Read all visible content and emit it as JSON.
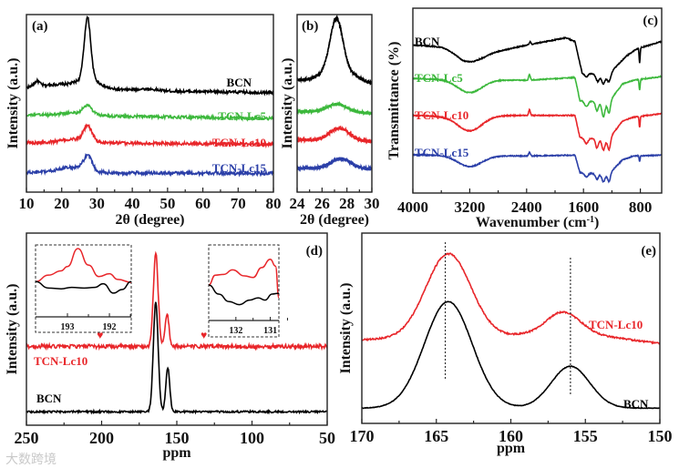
{
  "watermark": "大数跨境",
  "chart_data": [
    {
      "id": "a",
      "type": "line",
      "panel_label": "(a)",
      "xlabel": "2θ (degree)",
      "ylabel": "Intensity (a.u.)",
      "xlim": [
        10,
        80
      ],
      "ylim": [
        0,
        100
      ],
      "xticks": [
        10,
        20,
        30,
        40,
        50,
        60,
        70,
        80
      ],
      "minor_step": 5,
      "series": [
        {
          "name": "BCN",
          "color": "#000000",
          "noise": 0.8,
          "baseline": [
            [
              10,
              59
            ],
            [
              12,
              59
            ],
            [
              30,
              58
            ],
            [
              45,
              57
            ],
            [
              80,
              56
            ]
          ],
          "peaks": [
            [
              13,
              3,
              0.8
            ],
            [
              19,
              2,
              4
            ],
            [
              27.3,
              34,
              0.9
            ],
            [
              27.5,
              6,
              3
            ],
            [
              44,
              1,
              3
            ]
          ]
        },
        {
          "name": "TCN-Lc5",
          "color": "#3cb83c",
          "noise": 0.8,
          "baseline": [
            [
              10,
              43.5
            ],
            [
              80,
              41.5
            ]
          ],
          "peaks": [
            [
              27.3,
              5,
              1.2
            ],
            [
              24,
              1.5,
              4
            ]
          ]
        },
        {
          "name": "TCN-Lc10",
          "color": "#e8262a",
          "noise": 0.9,
          "baseline": [
            [
              10,
              28
            ],
            [
              80,
              27
            ]
          ],
          "peaks": [
            [
              27.4,
              8,
              1.2
            ],
            [
              24,
              2,
              4
            ]
          ]
        },
        {
          "name": "TCN-Lc15",
          "color": "#2b3fa8",
          "noise": 0.9,
          "baseline": [
            [
              10,
              11
            ],
            [
              80,
              10.5
            ]
          ],
          "peaks": [
            [
              27.4,
              8,
              1.2
            ],
            [
              23,
              3,
              4
            ]
          ]
        }
      ]
    },
    {
      "id": "b",
      "type": "line",
      "panel_label": "(b)",
      "xlabel": "2θ (degree)",
      "ylabel": "Intensity (a.u.)",
      "xlim": [
        24,
        30
      ],
      "ylim": [
        0,
        100
      ],
      "xticks": [
        24,
        26,
        28,
        30
      ],
      "minor_step": 1,
      "series": [
        {
          "name": "BCN",
          "color": "#000000",
          "noise": 0.9,
          "baseline": [
            [
              24,
              63
            ],
            [
              30,
              61
            ]
          ],
          "peaks": [
            [
              27.15,
              28,
              0.5
            ],
            [
              27.3,
              8,
              1.2
            ]
          ]
        },
        {
          "name": "TCN-Lc5",
          "color": "#3cb83c",
          "noise": 0.9,
          "baseline": [
            [
              24,
              45.5
            ],
            [
              30,
              44.5
            ]
          ],
          "peaks": [
            [
              27.2,
              4.5,
              0.8
            ]
          ]
        },
        {
          "name": "TCN-Lc10",
          "color": "#e8262a",
          "noise": 1.0,
          "baseline": [
            [
              24,
              29.5
            ],
            [
              30,
              28.5
            ]
          ],
          "peaks": [
            [
              27.4,
              7,
              0.8
            ]
          ]
        },
        {
          "name": "TCN-Lc15",
          "color": "#2b3fa8",
          "noise": 1.0,
          "baseline": [
            [
              24,
              13.5
            ],
            [
              30,
              13
            ]
          ],
          "peaks": [
            [
              27.5,
              5.5,
              0.8
            ]
          ]
        }
      ]
    },
    {
      "id": "c",
      "type": "line",
      "panel_label": "(c)",
      "xlabel": "Wavenumber (cm",
      "xlabel_sup": "-1",
      "xlabel_end": ")",
      "ylabel": "Transmittance (%)",
      "xlim": [
        4000,
        500
      ],
      "ylim": [
        0,
        100
      ],
      "xticks": [
        4000,
        3200,
        2400,
        1600,
        800
      ],
      "minor_step": 400,
      "series": [
        {
          "name": "BCN",
          "color": "#000000",
          "noise": 0.25,
          "baseline": [
            [
              4000,
              80
            ],
            [
              3600,
              79
            ],
            [
              3300,
              75
            ],
            [
              3000,
              75
            ],
            [
              2400,
              80
            ],
            [
              1850,
              84
            ],
            [
              1720,
              82
            ],
            [
              1620,
              65
            ],
            [
              1250,
              64
            ],
            [
              1000,
              74
            ],
            [
              850,
              78
            ],
            [
              500,
              82
            ]
          ],
          "peaks": [
            [
              3200,
              -4,
              150
            ],
            [
              2350,
              1.5,
              10
            ],
            [
              1560,
              -2,
              25
            ],
            [
              1400,
              -4,
              25
            ],
            [
              1320,
              -5,
              25
            ],
            [
              1240,
              -4,
              25
            ],
            [
              810,
              -8,
              7
            ]
          ]
        },
        {
          "name": "TCN-Lc5",
          "color": "#3cb83c",
          "noise": 0.25,
          "baseline": [
            [
              4000,
              62
            ],
            [
              3600,
              61.5
            ],
            [
              2400,
              61
            ],
            [
              1720,
              62.5
            ],
            [
              1650,
              50
            ],
            [
              1250,
              49
            ],
            [
              1050,
              59
            ],
            [
              900,
              61
            ],
            [
              500,
              63
            ]
          ],
          "peaks": [
            [
              3200,
              -7,
              170
            ],
            [
              2360,
              3,
              12
            ],
            [
              1560,
              -3,
              25
            ],
            [
              1410,
              -5,
              20
            ],
            [
              1320,
              -8,
              22
            ],
            [
              1240,
              -6,
              20
            ],
            [
              810,
              -6,
              7
            ]
          ]
        },
        {
          "name": "TCN-Lc10",
          "color": "#e8262a",
          "noise": 0.25,
          "baseline": [
            [
              4000,
              42
            ],
            [
              3600,
              41.5
            ],
            [
              2400,
              42
            ],
            [
              1720,
              42
            ],
            [
              1650,
              30
            ],
            [
              1250,
              29
            ],
            [
              1050,
              39
            ],
            [
              900,
              41
            ],
            [
              500,
              43
            ]
          ],
          "peaks": [
            [
              3200,
              -8,
              170
            ],
            [
              2360,
              3,
              12
            ],
            [
              1560,
              -3,
              25
            ],
            [
              1410,
              -5,
              20
            ],
            [
              1320,
              -6,
              22
            ],
            [
              1240,
              -6,
              20
            ],
            [
              810,
              -6,
              7
            ]
          ]
        },
        {
          "name": "TCN-Lc15",
          "color": "#2b3fa8",
          "noise": 0.25,
          "baseline": [
            [
              4000,
              20.7
            ],
            [
              3600,
              20.5
            ],
            [
              2400,
              20
            ],
            [
              1720,
              20.5
            ],
            [
              1650,
              11
            ],
            [
              1250,
              10
            ],
            [
              1050,
              18
            ],
            [
              900,
              20
            ],
            [
              500,
              20.5
            ]
          ],
          "peaks": [
            [
              3200,
              -6,
              170
            ],
            [
              2360,
              2,
              12
            ],
            [
              1560,
              -2,
              25
            ],
            [
              1410,
              -3,
              20
            ],
            [
              1320,
              -4,
              22
            ],
            [
              1240,
              -4,
              20
            ],
            [
              810,
              -3,
              7
            ]
          ]
        }
      ]
    },
    {
      "id": "d",
      "type": "line",
      "panel_label": "(d)",
      "xlabel": "ppm",
      "ylabel": "Intensity (a.u.)",
      "xlim": [
        250,
        50
      ],
      "ylim": [
        0,
        100
      ],
      "xticks": [
        250,
        200,
        150,
        100,
        50
      ],
      "minor_step": 25,
      "series": [
        {
          "name": "TCN-Lc10",
          "color": "#e8262a",
          "noise": 1.0,
          "baseline": [
            [
              250,
              41
            ],
            [
              50,
              41
            ]
          ],
          "peaks": [
            [
              164,
              48,
              1.6
            ],
            [
              156.5,
              17,
              1.3
            ]
          ]
        },
        {
          "name": "BCN",
          "color": "#000000",
          "noise": 0.5,
          "baseline": [
            [
              250,
              7
            ],
            [
              50,
              7
            ]
          ],
          "peaks": [
            [
              164,
              57,
              1.6
            ],
            [
              156,
              23,
              1.3
            ]
          ]
        }
      ],
      "markers": [
        {
          "symbol": "♥",
          "x": 201,
          "y": 47,
          "color": "#e8262a"
        },
        {
          "symbol": "♥",
          "x": 132,
          "y": 47,
          "color": "#e8262a"
        }
      ],
      "insets": [
        {
          "xlim": [
            193.76,
            191.48
          ],
          "xticks": [
            193,
            192
          ],
          "series": [
            {
              "name": "TCN-Lc10",
              "color": "#e8262a",
              "points": [
                [
                  193.76,
                  49
                ],
                [
                  193.45,
                  58
                ],
                [
                  193.15,
                  64
                ],
                [
                  193.0,
                  70
                ],
                [
                  192.75,
                  95
                ],
                [
                  192.5,
                  72
                ],
                [
                  192.25,
                  56
                ],
                [
                  192.0,
                  60
                ],
                [
                  191.8,
                  52
                ],
                [
                  191.48,
                  48
                ]
              ]
            },
            {
              "name": "BCN",
              "color": "#000000",
              "points": [
                [
                  193.76,
                  49
                ],
                [
                  193.45,
                  40
                ],
                [
                  193.15,
                  39
                ],
                [
                  192.9,
                  41
                ],
                [
                  192.6,
                  40
                ],
                [
                  192.35,
                  41
                ],
                [
                  192.15,
                  46
                ],
                [
                  191.9,
                  33
                ],
                [
                  191.7,
                  38
                ],
                [
                  191.48,
                  49
                ]
              ]
            }
          ]
        },
        {
          "xlim": [
            132.79,
            130.75
          ],
          "xticks": [
            132,
            131
          ],
          "series": [
            {
              "name": "TCN-Lc10",
              "color": "#e8262a",
              "points": [
                [
                  132.79,
                  47
                ],
                [
                  132.6,
                  60
                ],
                [
                  132.35,
                  61
                ],
                [
                  132.1,
                  67
                ],
                [
                  131.75,
                  59
                ],
                [
                  131.5,
                  57
                ],
                [
                  131.25,
                  70
                ],
                [
                  131.0,
                  81
                ],
                [
                  130.85,
                  72
                ],
                [
                  130.75,
                  30
                ]
              ]
            },
            {
              "name": "BCN",
              "color": "#000000",
              "points": [
                [
                  132.79,
                  47
                ],
                [
                  132.5,
                  35
                ],
                [
                  132.2,
                  25
                ],
                [
                  131.9,
                  21
                ],
                [
                  131.6,
                  27
                ],
                [
                  131.35,
                  30
                ],
                [
                  131.15,
                  27
                ],
                [
                  130.95,
                  35
                ],
                [
                  130.75,
                  36
                ]
              ]
            }
          ]
        }
      ]
    },
    {
      "id": "e",
      "type": "line",
      "panel_label": "(e)",
      "xlabel": "ppm",
      "ylabel": "Intensity (a.u.)",
      "xlim": [
        170,
        150
      ],
      "ylim": [
        0,
        100
      ],
      "xticks": [
        170,
        165,
        160,
        155,
        150
      ],
      "minor_step": 2.5,
      "series": [
        {
          "name": "TCN-Lc10",
          "color": "#e8262a",
          "noise": 0.4,
          "baseline": [
            [
              170,
              44
            ],
            [
              160,
              46
            ],
            [
              157,
              49
            ],
            [
              150,
              42
            ]
          ],
          "peaks": [
            [
              164.2,
              44,
              1.5
            ],
            [
              156.4,
              10,
              1.1
            ]
          ]
        },
        {
          "name": "BCN",
          "color": "#000000",
          "noise": 0.15,
          "baseline": [
            [
              170,
              8
            ],
            [
              150,
              8
            ]
          ],
          "peaks": [
            [
              164.2,
              56,
              1.6
            ],
            [
              156,
              22,
              1.3
            ]
          ]
        }
      ],
      "reference_lines": [
        164.4,
        156.0
      ]
    }
  ]
}
